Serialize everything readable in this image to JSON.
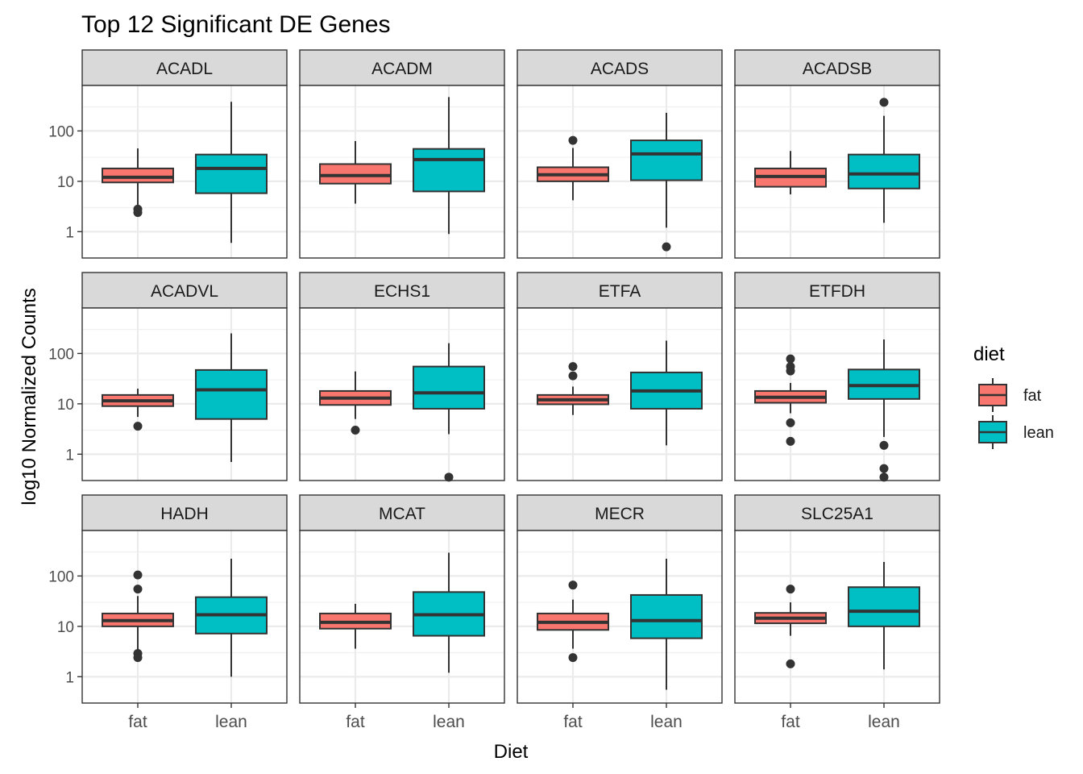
{
  "chart_data": {
    "type": "boxplot",
    "title": "Top 12 Significant DE Genes",
    "xlabel": "Diet",
    "ylabel": "log10 Normalized Counts",
    "y_scale": "log10",
    "ylim": [
      0.3,
      800
    ],
    "y_ticks": [
      1,
      10,
      100
    ],
    "y_tick_labels": [
      "1",
      "10",
      "100"
    ],
    "categories": [
      "fat",
      "lean"
    ],
    "grid": true,
    "legend": {
      "title": "diet",
      "position": "right",
      "entries": [
        {
          "name": "fat",
          "color": "#F8766D"
        },
        {
          "name": "lean",
          "color": "#00BFC4"
        }
      ]
    },
    "panels": [
      {
        "gene": "ACADL",
        "fat": {
          "whisker_low": 3.0,
          "q1": 9.5,
          "median": 12,
          "q3": 18,
          "whisker_high": 45,
          "outliers": [
            2.4,
            2.8
          ]
        },
        "lean": {
          "whisker_low": 0.6,
          "q1": 5.8,
          "median": 18,
          "q3": 34,
          "whisker_high": 380,
          "outliers": []
        }
      },
      {
        "gene": "ACADM",
        "fat": {
          "whisker_low": 3.6,
          "q1": 9,
          "median": 13,
          "q3": 22,
          "whisker_high": 63,
          "outliers": []
        },
        "lean": {
          "whisker_low": 0.9,
          "q1": 6.3,
          "median": 27,
          "q3": 44,
          "whisker_high": 470,
          "outliers": []
        }
      },
      {
        "gene": "ACADS",
        "fat": {
          "whisker_low": 4.2,
          "q1": 10,
          "median": 13.5,
          "q3": 19,
          "whisker_high": 46,
          "outliers": [
            65
          ]
        },
        "lean": {
          "whisker_low": 1.2,
          "q1": 10.5,
          "median": 35,
          "q3": 65,
          "whisker_high": 230,
          "outliers": [
            0.5
          ]
        }
      },
      {
        "gene": "ACADSB",
        "fat": {
          "whisker_low": 5.5,
          "q1": 7.8,
          "median": 12.5,
          "q3": 18,
          "whisker_high": 40,
          "outliers": []
        },
        "lean": {
          "whisker_low": 1.5,
          "q1": 7.2,
          "median": 14,
          "q3": 34,
          "whisker_high": 200,
          "outliers": [
            370
          ]
        }
      },
      {
        "gene": "ACADVL",
        "fat": {
          "whisker_low": 5.5,
          "q1": 9,
          "median": 11.5,
          "q3": 15,
          "whisker_high": 20,
          "outliers": [
            3.6
          ]
        },
        "lean": {
          "whisker_low": 0.7,
          "q1": 5,
          "median": 19,
          "q3": 47,
          "whisker_high": 250,
          "outliers": []
        }
      },
      {
        "gene": "ECHS1",
        "fat": {
          "whisker_low": 5,
          "q1": 9.5,
          "median": 13,
          "q3": 18,
          "whisker_high": 44,
          "outliers": [
            3.0
          ]
        },
        "lean": {
          "whisker_low": 2.5,
          "q1": 8,
          "median": 16.5,
          "q3": 55,
          "whisker_high": 160,
          "outliers": [
            0.35
          ]
        }
      },
      {
        "gene": "ETFA",
        "fat": {
          "whisker_low": 6,
          "q1": 9.8,
          "median": 12,
          "q3": 15,
          "whisker_high": 22,
          "outliers": [
            36,
            55
          ]
        },
        "lean": {
          "whisker_low": 1.5,
          "q1": 8,
          "median": 18,
          "q3": 42,
          "whisker_high": 180,
          "outliers": []
        }
      },
      {
        "gene": "ETFDH",
        "fat": {
          "whisker_low": 6.5,
          "q1": 10.5,
          "median": 13.5,
          "q3": 18,
          "whisker_high": 26,
          "outliers": [
            1.8,
            4.2,
            45,
            55,
            78
          ]
        },
        "lean": {
          "whisker_low": 2.2,
          "q1": 12.5,
          "median": 23,
          "q3": 48,
          "whisker_high": 190,
          "outliers": [
            0.35,
            0.52,
            1.5
          ]
        }
      },
      {
        "gene": "HADH",
        "fat": {
          "whisker_low": 3.3,
          "q1": 10,
          "median": 13,
          "q3": 18,
          "whisker_high": 40,
          "outliers": [
            2.4,
            2.9,
            55,
            105
          ]
        },
        "lean": {
          "whisker_low": 1.0,
          "q1": 7.2,
          "median": 17,
          "q3": 38,
          "whisker_high": 220,
          "outliers": []
        }
      },
      {
        "gene": "MCAT",
        "fat": {
          "whisker_low": 3.6,
          "q1": 9,
          "median": 12,
          "q3": 18,
          "whisker_high": 28,
          "outliers": []
        },
        "lean": {
          "whisker_low": 1.2,
          "q1": 6.5,
          "median": 17,
          "q3": 48,
          "whisker_high": 290,
          "outliers": []
        }
      },
      {
        "gene": "MECR",
        "fat": {
          "whisker_low": 3.6,
          "q1": 8.5,
          "median": 12,
          "q3": 18,
          "whisker_high": 34,
          "outliers": [
            2.4,
            66
          ]
        },
        "lean": {
          "whisker_low": 0.55,
          "q1": 5.8,
          "median": 13,
          "q3": 42,
          "whisker_high": 220,
          "outliers": []
        }
      },
      {
        "gene": "SLC25A1",
        "fat": {
          "whisker_low": 6.5,
          "q1": 11.5,
          "median": 14.5,
          "q3": 18.5,
          "whisker_high": 30,
          "outliers": [
            1.8,
            55
          ]
        },
        "lean": {
          "whisker_low": 1.4,
          "q1": 10,
          "median": 20,
          "q3": 60,
          "whisker_high": 190,
          "outliers": []
        }
      }
    ]
  }
}
